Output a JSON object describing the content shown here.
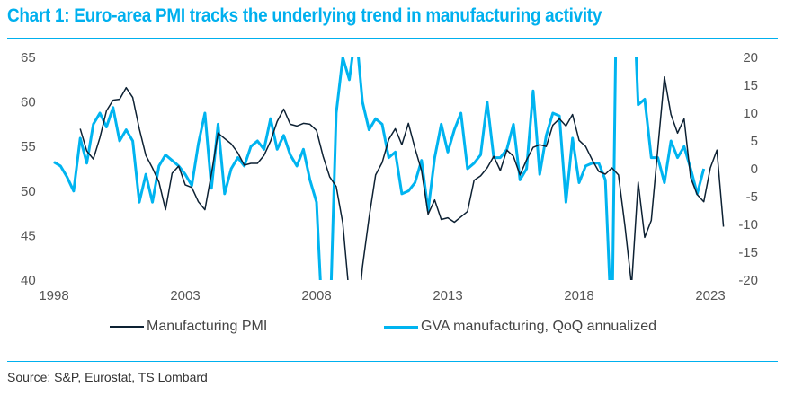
{
  "title": "Chart 1: Euro-area PMI tracks the underlying trend in manufacturing activity",
  "source": "Source: S&P, Eurostat, TS Lombard",
  "colors": {
    "accent": "#00B0EE",
    "pmi": "#0D2133",
    "gva": "#00B4F0"
  },
  "chart_data": {
    "type": "line",
    "title": "Chart 1: Euro-area PMI tracks the underlying trend in manufacturing activity",
    "xlabel": "",
    "x_start": "1998Q1",
    "frequency": "quarterly",
    "x_ticks": [
      "1998",
      "2003",
      "2008",
      "2013",
      "2018",
      "2023"
    ],
    "y_left": {
      "ylim": [
        40,
        65
      ],
      "ticks": [
        "65",
        "60",
        "55",
        "50",
        "45",
        "40"
      ]
    },
    "y_right": {
      "ylim": [
        -20,
        20
      ],
      "ticks": [
        "20",
        "15",
        "10",
        "5",
        "0",
        "-5",
        "-10",
        "-15",
        "-20"
      ]
    },
    "grid": false,
    "legend": "bottom",
    "series": [
      {
        "name": "Manufacturing PMI",
        "axis": "left",
        "start": "1999Q1",
        "values": [
          57.0,
          54.5,
          53.6,
          56.0,
          59.0,
          60.2,
          60.3,
          61.6,
          60.5,
          57.0,
          54.0,
          52.6,
          51.0,
          47.9,
          52.0,
          52.8,
          50.7,
          50.4,
          48.8,
          47.9,
          52.0,
          56.5,
          55.9,
          55.3,
          54.3,
          52.9,
          53.1,
          53.1,
          54.0,
          55.6,
          57.8,
          59.2,
          57.5,
          57.3,
          57.6,
          57.5,
          56.8,
          53.9,
          51.6,
          50.5,
          46.4,
          38.2,
          33.5,
          41.5,
          47.0,
          51.8,
          53.2,
          55.8,
          57.0,
          55.2,
          57.6,
          54.8,
          52.3,
          47.4,
          49.0,
          46.8,
          47.0,
          46.5,
          47.1,
          47.7,
          51.2,
          51.7,
          52.6,
          53.9,
          52.3,
          54.6,
          53.9,
          51.8,
          53.5,
          54.9,
          55.2,
          55.0,
          57.4,
          58.1,
          57.3,
          58.6,
          55.7,
          55.0,
          53.5,
          52.2,
          51.9,
          52.6,
          51.8,
          46.0,
          39.4,
          51.0,
          44.8,
          46.7,
          54.8,
          62.8,
          58.6,
          56.5,
          58.1,
          51.5,
          49.6,
          48.8,
          52.6,
          54.6,
          46.0
        ]
      },
      {
        "name": "GVA manufacturing, QoQ annualized",
        "axis": "right",
        "start": "1998Q1",
        "values": [
          1.2,
          0.5,
          -1.5,
          -4.0,
          5.5,
          1.0,
          8.0,
          10.0,
          7.5,
          11.0,
          5.0,
          7.0,
          5.0,
          -6.0,
          -1.0,
          -6.0,
          0.5,
          2.5,
          1.5,
          0.5,
          -1.0,
          -3.0,
          4.5,
          10.0,
          -3.5,
          8.0,
          -4.5,
          0.0,
          2.0,
          0.5,
          4.0,
          5.0,
          3.5,
          9.0,
          3.5,
          6.0,
          2.5,
          0.5,
          3.5,
          -2.0,
          -6.0,
          -30.0,
          -30.0,
          10.0,
          20.0,
          16.0,
          25.0,
          12.0,
          7.0,
          9.0,
          8.0,
          2.0,
          3.0,
          -4.5,
          -4.0,
          -2.5,
          1.5,
          -7.5,
          2.0,
          8.0,
          3.0,
          7.0,
          10.0,
          0.0,
          1.0,
          2.5,
          12.0,
          2.0,
          2.0,
          3.5,
          8.0,
          -2.0,
          0.0,
          14.0,
          -1.0,
          6.0,
          10.0,
          9.5,
          -6.0,
          5.5,
          -2.5,
          0.5,
          1.0,
          1.0,
          -2.0,
          -30.0,
          60.0,
          45.0,
          40.0,
          11.5,
          12.5,
          2.0,
          2.0,
          -2.5,
          5.0,
          2.0,
          4.0,
          0.0,
          -4.5,
          0.0
        ]
      }
    ]
  },
  "legend": {
    "items": [
      {
        "label": "Manufacturing PMI"
      },
      {
        "label": "GVA manufacturing, QoQ annualized"
      }
    ]
  }
}
